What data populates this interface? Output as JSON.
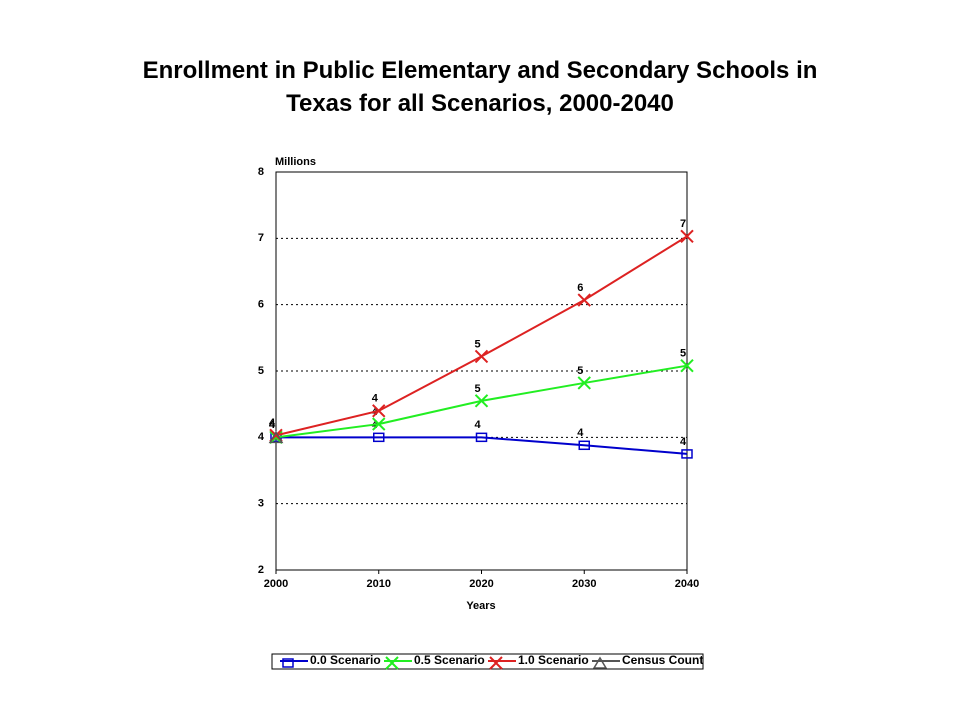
{
  "chart_data": {
    "type": "line",
    "title": "Enrollment in Public Elementary and Secondary Schools in Texas for all Scenarios, 2000-2040",
    "y_label": "Millions",
    "x_label": "Years",
    "x": [
      2000,
      2010,
      2020,
      2030,
      2040
    ],
    "xlim": [
      2000,
      2040
    ],
    "xticks": [
      2000,
      2010,
      2020,
      2030,
      2040
    ],
    "ylim": [
      2,
      8
    ],
    "yticks": [
      2,
      3,
      4,
      5,
      6,
      7,
      8
    ],
    "grid": true,
    "legend": "bottom",
    "series": [
      {
        "name": "0.0 Scenario",
        "color": "#0000cc",
        "marker": "square",
        "values": [
          4.0,
          4.0,
          4.0,
          3.88,
          3.75
        ],
        "value_labels": [
          "4",
          "4",
          "4",
          "4",
          "4"
        ]
      },
      {
        "name": "0.5 Scenario",
        "color": "#22ee22",
        "marker": "cross",
        "values": [
          4.0,
          4.2,
          4.55,
          4.82,
          5.08
        ],
        "value_labels": [
          "4",
          "4",
          "5",
          "5",
          "5"
        ]
      },
      {
        "name": "1.0 Scenario",
        "color": "#dd2222",
        "marker": "cross",
        "values": [
          4.03,
          4.4,
          5.22,
          6.07,
          7.03
        ],
        "value_labels": [
          "4",
          "4",
          "5",
          "6",
          "7"
        ]
      },
      {
        "name": "Census Count",
        "color": "#555555",
        "marker": "triangle",
        "values": [
          4.0,
          null,
          null,
          null,
          null
        ]
      }
    ]
  }
}
